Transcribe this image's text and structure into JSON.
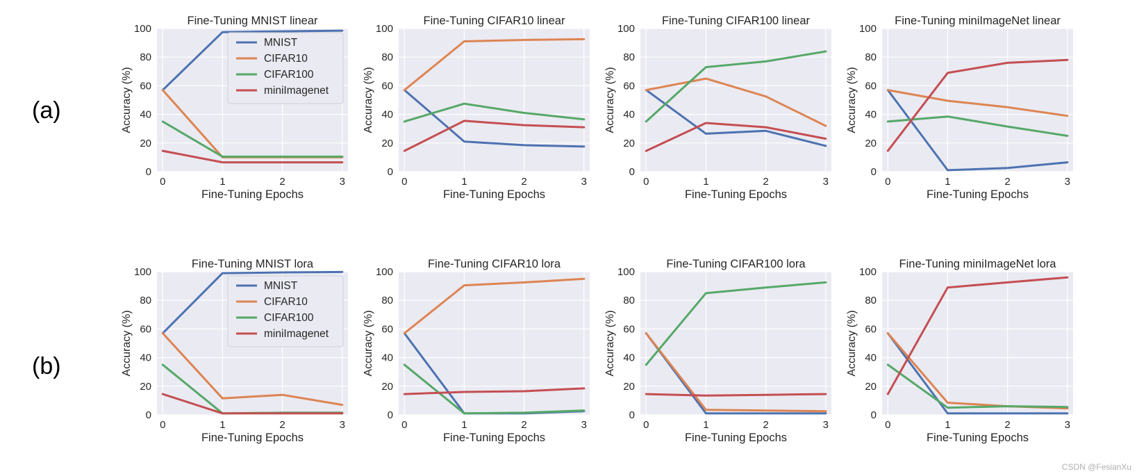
{
  "labels": {
    "row_a": "(a)",
    "row_b": "(b)"
  },
  "watermark": "CSDN @FesianXu",
  "colors": {
    "MNIST": "#4c72b0",
    "CIFAR10": "#dd8452",
    "CIFAR100": "#55a868",
    "miniImagenet": "#c44e52",
    "plot_bg": "#eaeaf2",
    "grid": "#ffffff"
  },
  "chart_data": [
    {
      "type": "line",
      "title": "Fine-Tuning MNIST linear",
      "xlabel": "Fine-Tuning Epochs",
      "ylabel": "Accuracy (%)",
      "x": [
        0,
        1,
        2,
        3
      ],
      "xticks": [
        "0",
        "1",
        "2",
        "3"
      ],
      "ylim": [
        0,
        100
      ],
      "yticks": [
        "0",
        "20",
        "40",
        "60",
        "80",
        "100"
      ],
      "legend": true,
      "legend_position": "top-right",
      "series": [
        {
          "name": "MNIST",
          "values": [
            57,
            97.5,
            98,
            98.5
          ]
        },
        {
          "name": "CIFAR10",
          "values": [
            57,
            10,
            10,
            10
          ]
        },
        {
          "name": "CIFAR100",
          "values": [
            35,
            10.5,
            10.5,
            10.5
          ]
        },
        {
          "name": "miniImagenet",
          "values": [
            14.5,
            6.5,
            6.5,
            6.5
          ]
        }
      ]
    },
    {
      "type": "line",
      "title": "Fine-Tuning CIFAR10 linear",
      "xlabel": "Fine-Tuning Epochs",
      "ylabel": "Accuracy (%)",
      "x": [
        0,
        1,
        2,
        3
      ],
      "xticks": [
        "0",
        "1",
        "2",
        "3"
      ],
      "ylim": [
        0,
        100
      ],
      "yticks": [
        "0",
        "20",
        "40",
        "60",
        "80",
        "100"
      ],
      "legend": false,
      "series": [
        {
          "name": "MNIST",
          "values": [
            57,
            21,
            18.5,
            17.5
          ]
        },
        {
          "name": "CIFAR10",
          "values": [
            57,
            91,
            92,
            92.5
          ]
        },
        {
          "name": "CIFAR100",
          "values": [
            35,
            47.5,
            41,
            36.5
          ]
        },
        {
          "name": "miniImagenet",
          "values": [
            14.5,
            35.5,
            32.5,
            31
          ]
        }
      ]
    },
    {
      "type": "line",
      "title": "Fine-Tuning CIFAR100 linear",
      "xlabel": "Fine-Tuning Epochs",
      "ylabel": "Accuracy (%)",
      "x": [
        0,
        1,
        2,
        3
      ],
      "xticks": [
        "0",
        "1",
        "2",
        "3"
      ],
      "ylim": [
        0,
        100
      ],
      "yticks": [
        "0",
        "20",
        "40",
        "60",
        "80",
        "100"
      ],
      "legend": false,
      "series": [
        {
          "name": "MNIST",
          "values": [
            57,
            26.5,
            28.5,
            18
          ]
        },
        {
          "name": "CIFAR10",
          "values": [
            57,
            65,
            52.5,
            32
          ]
        },
        {
          "name": "CIFAR100",
          "values": [
            35,
            73,
            77,
            84
          ]
        },
        {
          "name": "miniImagenet",
          "values": [
            14.5,
            34,
            31,
            23
          ]
        }
      ]
    },
    {
      "type": "line",
      "title": "Fine-Tuning miniImageNet linear",
      "xlabel": "Fine-Tuning Epochs",
      "ylabel": "Accuracy (%)",
      "x": [
        0,
        1,
        2,
        3
      ],
      "xticks": [
        "0",
        "1",
        "2",
        "3"
      ],
      "ylim": [
        0,
        100
      ],
      "yticks": [
        "0",
        "20",
        "40",
        "60",
        "80",
        "100"
      ],
      "legend": false,
      "series": [
        {
          "name": "MNIST",
          "values": [
            57,
            1,
            2.5,
            6.5
          ]
        },
        {
          "name": "CIFAR10",
          "values": [
            57,
            49.5,
            45,
            39
          ]
        },
        {
          "name": "CIFAR100",
          "values": [
            35,
            38.5,
            31.5,
            25
          ]
        },
        {
          "name": "miniImagenet",
          "values": [
            14.5,
            69,
            76,
            78
          ]
        }
      ]
    },
    {
      "type": "line",
      "title": "Fine-Tuning MNIST lora",
      "xlabel": "Fine-Tuning Epochs",
      "ylabel": "Accuracy (%)",
      "x": [
        0,
        1,
        2,
        3
      ],
      "xticks": [
        "0",
        "1",
        "2",
        "3"
      ],
      "ylim": [
        0,
        100
      ],
      "yticks": [
        "0",
        "20",
        "40",
        "60",
        "80",
        "100"
      ],
      "legend": true,
      "legend_position": "top-right",
      "series": [
        {
          "name": "MNIST",
          "values": [
            57,
            99,
            99.5,
            99.8
          ]
        },
        {
          "name": "CIFAR10",
          "values": [
            57,
            11.5,
            14,
            7
          ]
        },
        {
          "name": "CIFAR100",
          "values": [
            35,
            1,
            1.5,
            1.5
          ]
        },
        {
          "name": "miniImagenet",
          "values": [
            14.5,
            1,
            1,
            1
          ]
        }
      ]
    },
    {
      "type": "line",
      "title": "Fine-Tuning CIFAR10 lora",
      "xlabel": "Fine-Tuning Epochs",
      "ylabel": "Accuracy (%)",
      "x": [
        0,
        1,
        2,
        3
      ],
      "xticks": [
        "0",
        "1",
        "2",
        "3"
      ],
      "ylim": [
        0,
        100
      ],
      "yticks": [
        "0",
        "20",
        "40",
        "60",
        "80",
        "100"
      ],
      "legend": false,
      "series": [
        {
          "name": "MNIST",
          "values": [
            57,
            1,
            1,
            2.5
          ]
        },
        {
          "name": "CIFAR10",
          "values": [
            57,
            90.5,
            92.5,
            95
          ]
        },
        {
          "name": "CIFAR100",
          "values": [
            35,
            1,
            1.5,
            3
          ]
        },
        {
          "name": "miniImagenet",
          "values": [
            14.5,
            16,
            16.5,
            18.5
          ]
        }
      ]
    },
    {
      "type": "line",
      "title": "Fine-Tuning CIFAR100 lora",
      "xlabel": "Fine-Tuning Epochs",
      "ylabel": "Accuracy (%)",
      "x": [
        0,
        1,
        2,
        3
      ],
      "xticks": [
        "0",
        "1",
        "2",
        "3"
      ],
      "ylim": [
        0,
        100
      ],
      "yticks": [
        "0",
        "20",
        "40",
        "60",
        "80",
        "100"
      ],
      "legend": false,
      "series": [
        {
          "name": "MNIST",
          "values": [
            57,
            1,
            1,
            1
          ]
        },
        {
          "name": "CIFAR10",
          "values": [
            57,
            3.5,
            3,
            2.5
          ]
        },
        {
          "name": "CIFAR100",
          "values": [
            35,
            85,
            89,
            92.5
          ]
        },
        {
          "name": "miniImagenet",
          "values": [
            14.5,
            13.5,
            14,
            14.5
          ]
        }
      ]
    },
    {
      "type": "line",
      "title": "Fine-Tuning miniImageNet lora",
      "xlabel": "Fine-Tuning Epochs",
      "ylabel": "Accuracy (%)",
      "x": [
        0,
        1,
        2,
        3
      ],
      "xticks": [
        "0",
        "1",
        "2",
        "3"
      ],
      "ylim": [
        0,
        100
      ],
      "yticks": [
        "0",
        "20",
        "40",
        "60",
        "80",
        "100"
      ],
      "legend": false,
      "series": [
        {
          "name": "MNIST",
          "values": [
            57,
            1,
            1,
            1
          ]
        },
        {
          "name": "CIFAR10",
          "values": [
            57,
            8.5,
            6,
            4.5
          ]
        },
        {
          "name": "CIFAR100",
          "values": [
            35,
            5,
            6,
            5.5
          ]
        },
        {
          "name": "miniImagenet",
          "values": [
            14.5,
            89,
            92.5,
            96
          ]
        }
      ]
    }
  ]
}
